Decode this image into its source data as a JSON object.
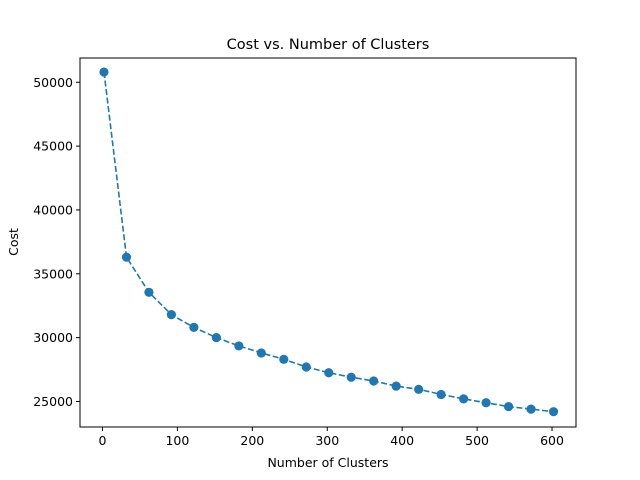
{
  "chart_data": {
    "type": "line",
    "title": "Cost vs. Number of Clusters",
    "xlabel": "Number of Clusters",
    "ylabel": "Cost",
    "xlim": [
      -30,
      632
    ],
    "ylim": [
      23000,
      51900
    ],
    "xticks": [
      0,
      100,
      200,
      300,
      400,
      500,
      600
    ],
    "yticks": [
      25000,
      30000,
      35000,
      40000,
      45000,
      50000
    ],
    "grid": false,
    "line_style": "dashed",
    "marker": "circle",
    "color": "#1f77b4",
    "series": [
      {
        "x": [
          2,
          32,
          62,
          92,
          122,
          152,
          182,
          212,
          242,
          272,
          302,
          332,
          362,
          392,
          422,
          452,
          482,
          512,
          542,
          572,
          602
        ],
        "values": [
          50800,
          36300,
          33550,
          31800,
          30800,
          30000,
          29350,
          28800,
          28300,
          27700,
          27250,
          26900,
          26600,
          26200,
          25950,
          25550,
          25200,
          24900,
          24600,
          24400,
          24200
        ]
      }
    ]
  }
}
